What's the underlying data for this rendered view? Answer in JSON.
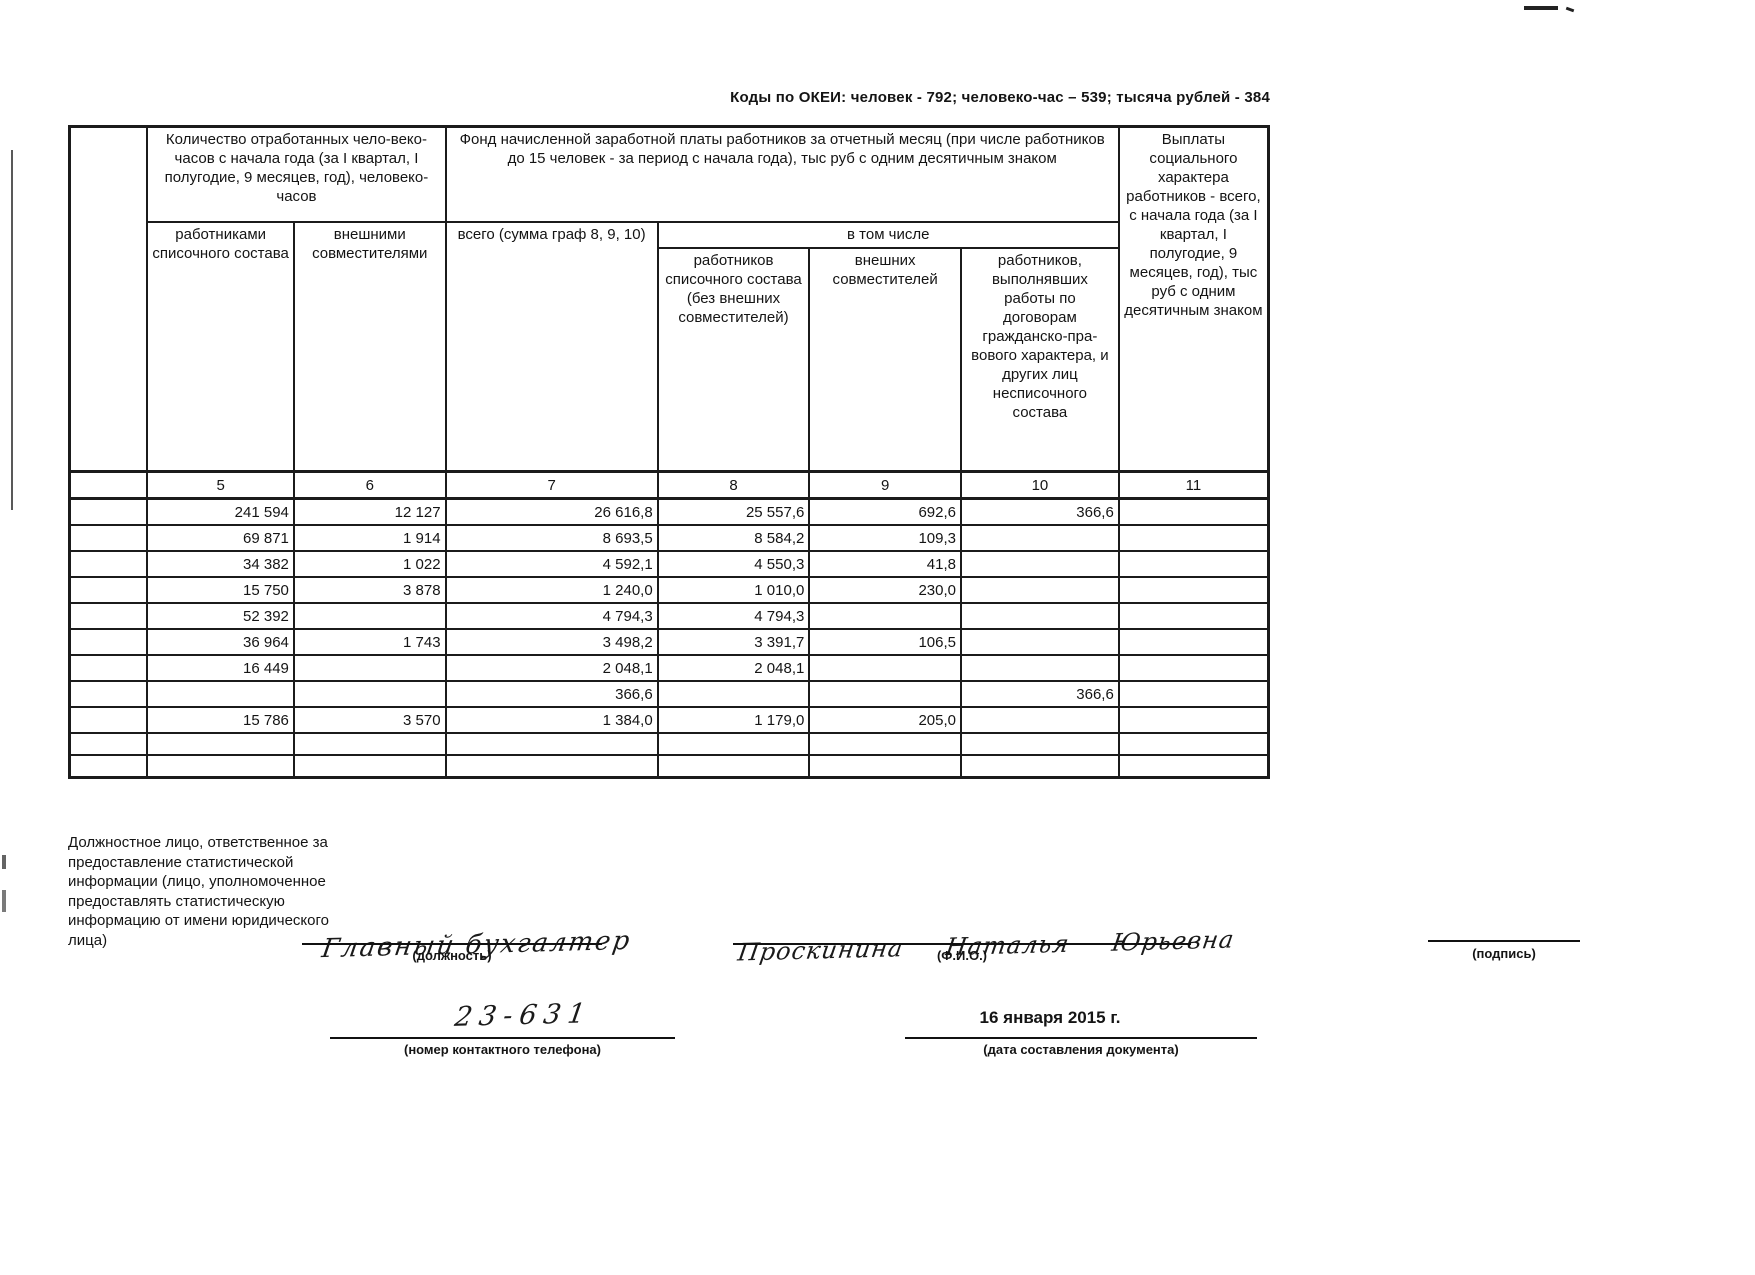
{
  "meta": {
    "okei_codes": "Коды по ОКЕИ: человек - 792; человеко-час – 539; тысяча рублей - 384"
  },
  "table": {
    "headers": {
      "hours": "Количество отработанных чело-веко-часов с начала года (за I квартал, I полугодие, 9 месяцев, год), человеко-часов",
      "hours_sub_list": "работниками списочного состава",
      "hours_sub_external": "внешними совместителями",
      "fund": "Фонд начисленной заработной платы работников за отчетный месяц (при числе работников до 15 человек - за период с начала года), тыс руб с одним десятичным знаком",
      "fund_total": "всего (сумма граф 8, 9, 10)",
      "fund_including": "в том числе",
      "fund_sub_list": "работников списочного состава (без внешних совместителей)",
      "fund_sub_external": "внешних совместителей",
      "fund_sub_contracts": "работников, выполнявших работы по договорам гражданско-пра- вового характера, и других лиц несписочного состава",
      "social": "Выплаты социального характера работников - всего, с начала года (за I квартал, I полугодие, 9 месяцев, год), тыс руб с одним десятичным знаком"
    },
    "column_numbers": [
      "5",
      "6",
      "7",
      "8",
      "9",
      "10",
      "11"
    ],
    "rows": [
      [
        "",
        "241 594",
        "12 127",
        "26 616,8",
        "25 557,6",
        "692,6",
        "366,6",
        ""
      ],
      [
        "",
        "69 871",
        "1 914",
        "8 693,5",
        "8 584,2",
        "109,3",
        "",
        ""
      ],
      [
        "",
        "34 382",
        "1 022",
        "4 592,1",
        "4 550,3",
        "41,8",
        "",
        ""
      ],
      [
        "",
        "15 750",
        "3 878",
        "1 240,0",
        "1 010,0",
        "230,0",
        "",
        ""
      ],
      [
        "",
        "52 392",
        "",
        "4 794,3",
        "4 794,3",
        "",
        "",
        ""
      ],
      [
        "",
        "36 964",
        "1 743",
        "3 498,2",
        "3 391,7",
        "106,5",
        "",
        ""
      ],
      [
        "",
        "16 449",
        "",
        "2 048,1",
        "2 048,1",
        "",
        "",
        ""
      ],
      [
        "",
        "",
        "",
        "366,6",
        "",
        "",
        "366,6",
        ""
      ],
      [
        "",
        "15 786",
        "3 570",
        "1 384,0",
        "1 179,0",
        "205,0",
        "",
        ""
      ],
      [
        "",
        "",
        "",
        "",
        "",
        "",
        "",
        ""
      ],
      [
        "",
        "",
        "",
        "",
        "",
        "",
        "",
        ""
      ]
    ]
  },
  "footer": {
    "official_text": "Должностное лицо, ответственное за предоставление статистической информации (лицо, уполномоченное предоставлять статистическую информацию от имени юридического лица)",
    "position_value": "Главный бухгалтер",
    "position_label": "(должность)",
    "name_value": "Проскинина Наталья Юрьевна",
    "name_label": "(Ф.И.О.)",
    "signature_label": "(подпись)",
    "phone_value": "23-631",
    "phone_label": "(номер контактного телефона)",
    "date_value": "16 января 2015 г.",
    "date_label": "(дата составления документа)"
  }
}
